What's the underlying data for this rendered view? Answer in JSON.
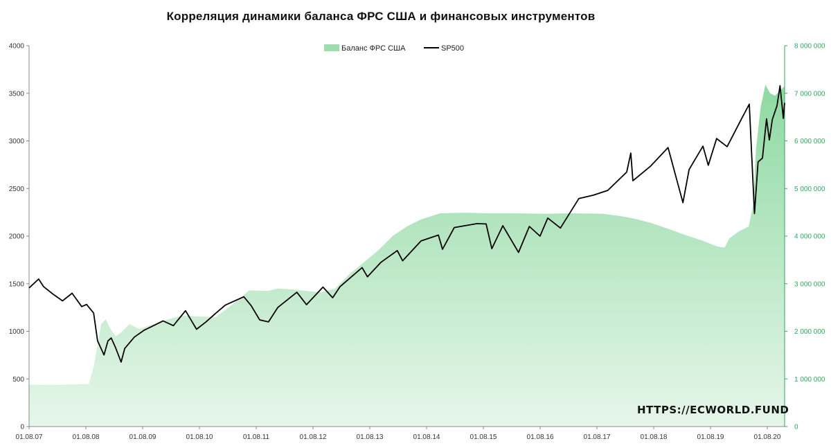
{
  "chart_data": {
    "type": "area+line",
    "title": "Корреляция динамики баланса ФРС США  и финансовых инструментов",
    "watermark": "HTTPS://ECWORLD.FUND",
    "colors": {
      "area": "#a9e2b6",
      "line": "#000000",
      "right_axis": "#2eaa5c"
    },
    "legend": {
      "placement": "top-center",
      "entries": [
        {
          "name": "Баланс ФРС США",
          "type": "area"
        },
        {
          "name": "SP500",
          "type": "line"
        }
      ]
    },
    "x_ticks": [
      "01.08.07",
      "01.08.08",
      "01.08.09",
      "01.08.10",
      "01.08.11",
      "01.08.12",
      "01.08.13",
      "01.08.14",
      "01.08.15",
      "01.08.16",
      "01.08.17",
      "01.08.18",
      "01.08.19",
      "01.08.20"
    ],
    "y_left": {
      "ylim": [
        0,
        4000
      ],
      "ticks": [
        "0",
        "500",
        "1000",
        "1500",
        "2000",
        "2500",
        "3000",
        "3500",
        "4000"
      ]
    },
    "y_right": {
      "ylim": [
        0,
        8000000
      ],
      "ticks": [
        "0",
        "1 000 000",
        "2 000 000",
        "3 000 000",
        "4 000 000",
        "5 000 000",
        "6 000 000",
        "7 000 000",
        "8 000 000"
      ]
    },
    "x_range": [
      "2007-08-01",
      "2020-10-01"
    ],
    "series": [
      {
        "name": "Баланс ФРС США",
        "axis": "right",
        "points": [
          [
            "2007-08-01",
            880000
          ],
          [
            "2008-01-01",
            875000
          ],
          [
            "2008-08-15",
            890000
          ],
          [
            "2008-09-15",
            1250000
          ],
          [
            "2008-10-15",
            1800000
          ],
          [
            "2008-11-01",
            2150000
          ],
          [
            "2008-12-01",
            2250000
          ],
          [
            "2009-01-01",
            2050000
          ],
          [
            "2009-02-01",
            1900000
          ],
          [
            "2009-03-01",
            1950000
          ],
          [
            "2009-05-01",
            2150000
          ],
          [
            "2009-07-01",
            2050000
          ],
          [
            "2009-10-01",
            2150000
          ],
          [
            "2010-01-01",
            2250000
          ],
          [
            "2010-04-01",
            2330000
          ],
          [
            "2010-08-01",
            2310000
          ],
          [
            "2010-11-01",
            2300000
          ],
          [
            "2011-01-01",
            2450000
          ],
          [
            "2011-04-01",
            2680000
          ],
          [
            "2011-06-01",
            2860000
          ],
          [
            "2011-10-01",
            2850000
          ],
          [
            "2011-12-01",
            2900000
          ],
          [
            "2012-03-01",
            2880000
          ],
          [
            "2012-06-01",
            2850000
          ],
          [
            "2012-09-01",
            2820000
          ],
          [
            "2012-12-01",
            2900000
          ],
          [
            "2013-03-01",
            3200000
          ],
          [
            "2013-06-01",
            3450000
          ],
          [
            "2013-09-01",
            3700000
          ],
          [
            "2013-12-01",
            4000000
          ],
          [
            "2014-03-01",
            4200000
          ],
          [
            "2014-06-01",
            4350000
          ],
          [
            "2014-10-01",
            4480000
          ],
          [
            "2015-03-01",
            4490000
          ],
          [
            "2015-08-01",
            4480000
          ],
          [
            "2016-01-01",
            4480000
          ],
          [
            "2016-08-01",
            4470000
          ],
          [
            "2017-01-01",
            4480000
          ],
          [
            "2017-08-01",
            4470000
          ],
          [
            "2017-11-01",
            4430000
          ],
          [
            "2018-02-01",
            4380000
          ],
          [
            "2018-06-01",
            4280000
          ],
          [
            "2018-10-01",
            4140000
          ],
          [
            "2019-01-01",
            4030000
          ],
          [
            "2019-05-01",
            3900000
          ],
          [
            "2019-08-01",
            3780000
          ],
          [
            "2019-09-15",
            3760000
          ],
          [
            "2019-10-15",
            3950000
          ],
          [
            "2019-12-15",
            4100000
          ],
          [
            "2020-02-15",
            4200000
          ],
          [
            "2020-03-15",
            4650000
          ],
          [
            "2020-04-01",
            5800000
          ],
          [
            "2020-05-01",
            6700000
          ],
          [
            "2020-06-01",
            7180000
          ],
          [
            "2020-07-01",
            7000000
          ],
          [
            "2020-08-01",
            6950000
          ],
          [
            "2020-09-01",
            7050000
          ],
          [
            "2020-10-01",
            7150000
          ]
        ]
      },
      {
        "name": "SP500",
        "axis": "left",
        "points": [
          [
            "2007-08-01",
            1455
          ],
          [
            "2007-10-01",
            1549
          ],
          [
            "2007-11-01",
            1470
          ],
          [
            "2008-01-01",
            1390
          ],
          [
            "2008-03-01",
            1320
          ],
          [
            "2008-05-01",
            1400
          ],
          [
            "2008-07-01",
            1260
          ],
          [
            "2008-08-01",
            1282
          ],
          [
            "2008-09-15",
            1192
          ],
          [
            "2008-10-10",
            900
          ],
          [
            "2008-11-20",
            752
          ],
          [
            "2008-12-15",
            900
          ],
          [
            "2009-01-05",
            930
          ],
          [
            "2009-02-01",
            830
          ],
          [
            "2009-03-09",
            677
          ],
          [
            "2009-04-01",
            820
          ],
          [
            "2009-06-01",
            940
          ],
          [
            "2009-08-01",
            1010
          ],
          [
            "2009-10-01",
            1060
          ],
          [
            "2009-12-01",
            1110
          ],
          [
            "2010-02-05",
            1060
          ],
          [
            "2010-04-23",
            1217
          ],
          [
            "2010-07-02",
            1022
          ],
          [
            "2010-09-01",
            1100
          ],
          [
            "2010-11-01",
            1190
          ],
          [
            "2011-01-01",
            1275
          ],
          [
            "2011-04-29",
            1363
          ],
          [
            "2011-06-15",
            1270
          ],
          [
            "2011-08-08",
            1120
          ],
          [
            "2011-10-03",
            1099
          ],
          [
            "2011-12-01",
            1250
          ],
          [
            "2012-04-01",
            1410
          ],
          [
            "2012-06-01",
            1280
          ],
          [
            "2012-09-14",
            1465
          ],
          [
            "2012-11-15",
            1353
          ],
          [
            "2013-01-01",
            1470
          ],
          [
            "2013-05-21",
            1669
          ],
          [
            "2013-06-24",
            1573
          ],
          [
            "2013-09-18",
            1725
          ],
          [
            "2013-12-31",
            1848
          ],
          [
            "2014-02-03",
            1741
          ],
          [
            "2014-06-01",
            1950
          ],
          [
            "2014-09-19",
            2011
          ],
          [
            "2014-10-15",
            1862
          ],
          [
            "2014-12-29",
            2090
          ],
          [
            "2015-05-21",
            2131
          ],
          [
            "2015-07-20",
            2128
          ],
          [
            "2015-08-25",
            1868
          ],
          [
            "2015-11-03",
            2109
          ],
          [
            "2016-02-11",
            1829
          ],
          [
            "2016-04-20",
            2102
          ],
          [
            "2016-06-27",
            2000
          ],
          [
            "2016-08-15",
            2190
          ],
          [
            "2016-11-04",
            2085
          ],
          [
            "2017-03-01",
            2395
          ],
          [
            "2017-06-01",
            2430
          ],
          [
            "2017-09-01",
            2480
          ],
          [
            "2017-12-31",
            2673
          ],
          [
            "2018-01-26",
            2872
          ],
          [
            "2018-02-08",
            2581
          ],
          [
            "2018-06-01",
            2735
          ],
          [
            "2018-09-20",
            2930
          ],
          [
            "2018-12-24",
            2351
          ],
          [
            "2019-02-01",
            2700
          ],
          [
            "2019-04-30",
            2945
          ],
          [
            "2019-06-03",
            2744
          ],
          [
            "2019-07-26",
            3025
          ],
          [
            "2019-10-01",
            2940
          ],
          [
            "2019-12-31",
            3230
          ],
          [
            "2020-02-19",
            3386
          ],
          [
            "2020-03-23",
            2237
          ],
          [
            "2020-04-15",
            2780
          ],
          [
            "2020-05-13",
            2820
          ],
          [
            "2020-06-08",
            3232
          ],
          [
            "2020-06-26",
            3010
          ],
          [
            "2020-07-15",
            3226
          ],
          [
            "2020-08-14",
            3372
          ],
          [
            "2020-09-02",
            3580
          ],
          [
            "2020-09-23",
            3237
          ],
          [
            "2020-10-01",
            3400
          ]
        ]
      }
    ]
  }
}
